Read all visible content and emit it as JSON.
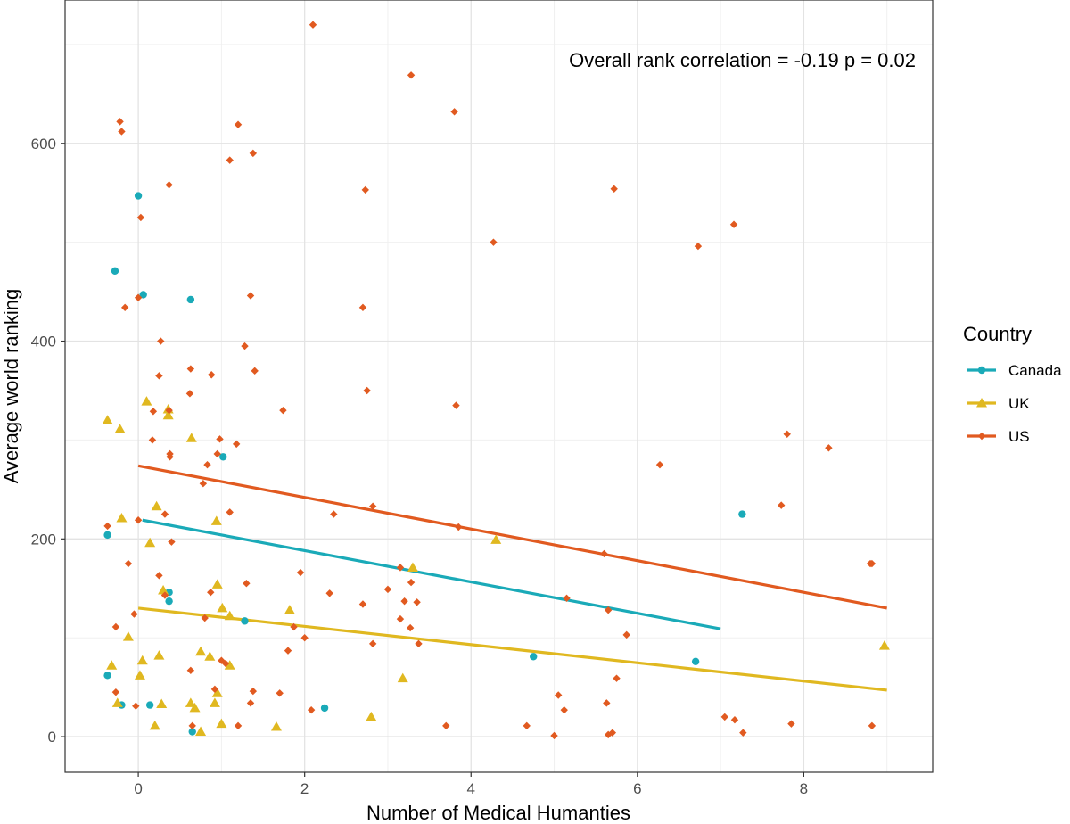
{
  "chart_data": {
    "type": "scatter",
    "xlabel": "Number of Medical Humanties",
    "ylabel": "Average world ranking",
    "annotation": "Overall rank correlation = -0.19 p = 0.02",
    "xlim": [
      -0.88,
      9.55
    ],
    "ylim": [
      -36,
      745
    ],
    "x_ticks": [
      0,
      2,
      4,
      6,
      8
    ],
    "y_ticks": [
      0,
      200,
      400,
      600
    ],
    "grid": true,
    "legend": {
      "title": "Country",
      "position": "right"
    },
    "series": [
      {
        "name": "Canada",
        "color": "#1aaab8",
        "marker": "circle",
        "points": [
          [
            0.0,
            547
          ],
          [
            -0.28,
            471
          ],
          [
            0.06,
            447
          ],
          [
            0.63,
            442
          ],
          [
            -0.37,
            204
          ],
          [
            1.02,
            283
          ],
          [
            0.37,
            146
          ],
          [
            0.37,
            137
          ],
          [
            1.28,
            117
          ],
          [
            -0.37,
            62
          ],
          [
            -0.2,
            32
          ],
          [
            0.14,
            32
          ],
          [
            0.65,
            5
          ],
          [
            2.24,
            29
          ],
          [
            4.75,
            81
          ],
          [
            6.7,
            76
          ],
          [
            7.26,
            225
          ]
        ],
        "trend": [
          [
            0.05,
            219
          ],
          [
            7.0,
            109
          ]
        ]
      },
      {
        "name": "UK",
        "color": "#e0b820",
        "marker": "triangle",
        "points": [
          [
            -0.37,
            320
          ],
          [
            -0.22,
            311
          ],
          [
            0.1,
            339
          ],
          [
            0.36,
            331
          ],
          [
            0.36,
            325
          ],
          [
            0.64,
            302
          ],
          [
            -0.2,
            221
          ],
          [
            0.22,
            233
          ],
          [
            0.94,
            218
          ],
          [
            0.14,
            196
          ],
          [
            0.3,
            148
          ],
          [
            0.95,
            154
          ],
          [
            1.01,
            130
          ],
          [
            -0.32,
            72
          ],
          [
            -0.12,
            101
          ],
          [
            0.05,
            77
          ],
          [
            0.25,
            82
          ],
          [
            0.02,
            62
          ],
          [
            0.75,
            86
          ],
          [
            0.86,
            81
          ],
          [
            1.1,
            72
          ],
          [
            0.95,
            44
          ],
          [
            1.1,
            122
          ],
          [
            1.82,
            128
          ],
          [
            1.66,
            10
          ],
          [
            0.2,
            11
          ],
          [
            0.68,
            29
          ],
          [
            0.63,
            34
          ],
          [
            0.92,
            34
          ],
          [
            0.28,
            33
          ],
          [
            -0.25,
            34
          ],
          [
            0.75,
            5
          ],
          [
            1.0,
            13
          ],
          [
            3.3,
            171
          ],
          [
            3.18,
            59
          ],
          [
            2.8,
            20
          ],
          [
            4.3,
            199
          ],
          [
            8.97,
            92
          ]
        ],
        "trend": [
          [
            0.0,
            130
          ],
          [
            9.0,
            47
          ]
        ]
      },
      {
        "name": "US",
        "color": "#e15a20",
        "marker": "diamond",
        "points": [
          [
            2.1,
            720
          ],
          [
            3.28,
            669
          ],
          [
            3.8,
            632
          ],
          [
            -0.22,
            622
          ],
          [
            -0.2,
            612
          ],
          [
            1.2,
            619
          ],
          [
            1.38,
            590
          ],
          [
            1.1,
            583
          ],
          [
            0.37,
            558
          ],
          [
            2.73,
            553
          ],
          [
            5.72,
            554
          ],
          [
            0.03,
            525
          ],
          [
            4.27,
            500
          ],
          [
            6.73,
            496
          ],
          [
            7.16,
            518
          ],
          [
            0.0,
            444
          ],
          [
            -0.16,
            434
          ],
          [
            1.35,
            446
          ],
          [
            2.7,
            434
          ],
          [
            0.27,
            400
          ],
          [
            1.28,
            395
          ],
          [
            0.63,
            372
          ],
          [
            1.4,
            370
          ],
          [
            0.25,
            365
          ],
          [
            0.88,
            366
          ],
          [
            0.62,
            347
          ],
          [
            2.75,
            350
          ],
          [
            0.37,
            330
          ],
          [
            0.18,
            329
          ],
          [
            1.74,
            330
          ],
          [
            3.82,
            335
          ],
          [
            0.98,
            301
          ],
          [
            0.17,
            300
          ],
          [
            1.18,
            296
          ],
          [
            0.38,
            286
          ],
          [
            0.95,
            286
          ],
          [
            0.38,
            283
          ],
          [
            0.83,
            275
          ],
          [
            7.8,
            306
          ],
          [
            8.3,
            292
          ],
          [
            6.27,
            275
          ],
          [
            0.78,
            256
          ],
          [
            1.1,
            227
          ],
          [
            0.32,
            225
          ],
          [
            2.35,
            225
          ],
          [
            2.82,
            233
          ],
          [
            -0.37,
            213
          ],
          [
            0.0,
            219
          ],
          [
            3.85,
            212
          ],
          [
            7.73,
            234
          ],
          [
            0.4,
            197
          ],
          [
            -0.12,
            175
          ],
          [
            5.6,
            185
          ],
          [
            8.8,
            175
          ],
          [
            8.82,
            175
          ],
          [
            0.25,
            163
          ],
          [
            3.15,
            171
          ],
          [
            1.95,
            166
          ],
          [
            0.87,
            146
          ],
          [
            1.3,
            155
          ],
          [
            2.3,
            145
          ],
          [
            0.32,
            143
          ],
          [
            3.0,
            149
          ],
          [
            3.28,
            156
          ],
          [
            -0.05,
            124
          ],
          [
            0.8,
            120
          ],
          [
            3.2,
            137
          ],
          [
            3.35,
            136
          ],
          [
            5.15,
            140
          ],
          [
            5.65,
            128
          ],
          [
            -0.27,
            111
          ],
          [
            1.87,
            111
          ],
          [
            2.0,
            100
          ],
          [
            3.15,
            119
          ],
          [
            3.27,
            110
          ],
          [
            5.87,
            103
          ],
          [
            1.0,
            77
          ],
          [
            1.05,
            74
          ],
          [
            1.8,
            87
          ],
          [
            2.7,
            134
          ],
          [
            2.82,
            94
          ],
          [
            3.37,
            94
          ],
          [
            1.38,
            46
          ],
          [
            0.92,
            48
          ],
          [
            1.7,
            44
          ],
          [
            -0.27,
            45
          ],
          [
            -0.03,
            31
          ],
          [
            0.63,
            67
          ],
          [
            5.75,
            59
          ],
          [
            5.05,
            42
          ],
          [
            5.12,
            27
          ],
          [
            5.63,
            34
          ],
          [
            2.08,
            27
          ],
          [
            1.35,
            34
          ],
          [
            0.65,
            11
          ],
          [
            1.2,
            11
          ],
          [
            3.7,
            11
          ],
          [
            4.67,
            11
          ],
          [
            5.0,
            1
          ],
          [
            5.65,
            2
          ],
          [
            5.7,
            4
          ],
          [
            7.05,
            20
          ],
          [
            7.17,
            17
          ],
          [
            7.27,
            4
          ],
          [
            7.85,
            13
          ],
          [
            8.82,
            11
          ]
        ],
        "trend": [
          [
            0.0,
            274
          ],
          [
            9.0,
            130
          ]
        ]
      }
    ]
  }
}
